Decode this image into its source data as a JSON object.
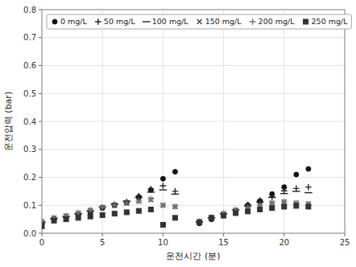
{
  "chart_data": {
    "type": "scatter",
    "x": [
      0,
      1,
      2,
      3,
      4,
      5,
      6,
      7,
      8,
      9,
      10,
      11,
      13,
      14,
      15,
      16,
      17,
      18,
      19,
      20,
      21,
      22
    ],
    "series": [
      {
        "name": "0 mg/L",
        "color": "#111111",
        "marker": "circle",
        "values": [
          0.035,
          0.05,
          0.055,
          0.065,
          0.075,
          0.09,
          0.1,
          0.11,
          0.13,
          0.155,
          0.195,
          0.22,
          0.035,
          0.05,
          0.065,
          0.08,
          0.1,
          0.115,
          0.14,
          0.165,
          0.21,
          0.23
        ]
      },
      {
        "name": "50 mg/L",
        "color": "#222222",
        "marker": "plus",
        "values": [
          0.038,
          0.052,
          0.058,
          0.068,
          0.078,
          0.092,
          0.103,
          0.112,
          0.133,
          0.158,
          0.17,
          0.15,
          0.038,
          0.052,
          0.068,
          0.082,
          0.102,
          0.118,
          0.13,
          0.152,
          0.16,
          0.165
        ]
      },
      {
        "name": "100 mg/L",
        "color": "#222222",
        "marker": "minus",
        "values": [
          0.04,
          0.053,
          0.06,
          0.07,
          0.08,
          0.094,
          0.105,
          0.115,
          0.128,
          0.147,
          0.155,
          0.14,
          0.04,
          0.055,
          0.07,
          0.084,
          0.098,
          0.112,
          0.128,
          0.142,
          0.15,
          0.145
        ]
      },
      {
        "name": "150 mg/L",
        "color": "#444444",
        "marker": "cross",
        "values": [
          0.04,
          0.054,
          0.062,
          0.072,
          0.082,
          0.092,
          0.1,
          0.108,
          0.115,
          0.12,
          0.1,
          0.095,
          0.04,
          0.056,
          0.07,
          0.082,
          0.092,
          0.1,
          0.108,
          0.112,
          0.108,
          0.105
        ]
      },
      {
        "name": "200 mg/L",
        "color": "#777777",
        "marker": "plus",
        "values": [
          0.042,
          0.055,
          0.063,
          0.073,
          0.083,
          0.093,
          0.1,
          0.108,
          0.115,
          0.122,
          0.1,
          0.095,
          0.042,
          0.057,
          0.072,
          0.083,
          0.092,
          0.1,
          0.108,
          0.113,
          0.108,
          0.104
        ]
      },
      {
        "name": "250 mg/L",
        "color": "#333333",
        "marker": "square",
        "values": [
          0.025,
          0.045,
          0.05,
          0.055,
          0.06,
          0.065,
          0.07,
          0.075,
          0.08,
          0.085,
          0.03,
          0.055,
          0.04,
          0.055,
          0.063,
          0.072,
          0.078,
          0.085,
          0.09,
          0.095,
          0.098,
          0.095
        ]
      }
    ],
    "x_label": "운전시간 (분)",
    "y_label": "운전압력 (bar)",
    "xlim": [
      0,
      25
    ],
    "ylim": [
      0,
      0.8
    ],
    "xticks": [
      0,
      5,
      10,
      15,
      20,
      25
    ],
    "yticks": [
      {
        "value": 0.0,
        "label": "0.0"
      },
      0.1,
      0.2,
      0.3,
      0.4,
      0.5,
      0.6,
      0.7,
      0.8
    ],
    "grid": true,
    "legend": "upper left"
  }
}
